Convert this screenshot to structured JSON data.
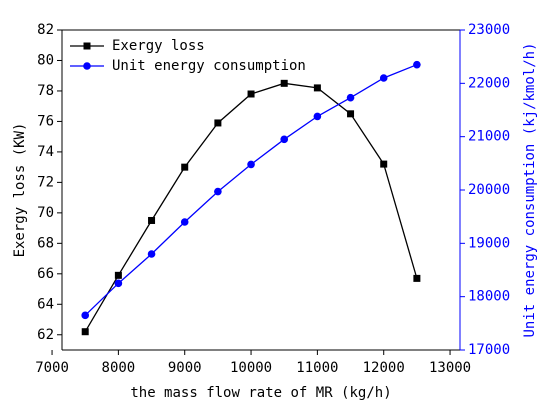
{
  "chart_data": {
    "type": "line",
    "x_label": "the mass flow rate of MR (kg/h)",
    "y_label": "Exergy loss (KW)",
    "y2_label": "Unit energy consumption (kj/kmol/h)",
    "x": [
      7500,
      8000,
      8500,
      9000,
      9500,
      10000,
      10500,
      11000,
      11500,
      12000,
      12500
    ],
    "series": [
      {
        "name": "Exergy loss",
        "color": "#000000",
        "marker": "square",
        "values": [
          62.2,
          65.9,
          69.5,
          73.0,
          75.9,
          77.8,
          78.5,
          78.2,
          76.5,
          73.2,
          65.7
        ]
      },
      {
        "name": "Unit energy consumption",
        "color": "#0000ff",
        "marker": "circle",
        "axis": "y2",
        "values": [
          17650,
          18250,
          18800,
          19400,
          19970,
          20480,
          20950,
          21380,
          21730,
          22100,
          22350
        ]
      }
    ],
    "xlim": [
      7150,
      13150
    ],
    "xticks": [
      7000,
      8000,
      9000,
      10000,
      11000,
      12000,
      13000
    ],
    "ylim": [
      61,
      82
    ],
    "yticks": [
      62,
      64,
      66,
      68,
      70,
      72,
      74,
      76,
      78,
      80,
      82
    ],
    "y2lim": [
      17000,
      23000
    ],
    "y2ticks": [
      17000,
      18000,
      19000,
      20000,
      21000,
      22000,
      23000
    ],
    "y2_color": "#0000ff",
    "legend": "top-left"
  }
}
